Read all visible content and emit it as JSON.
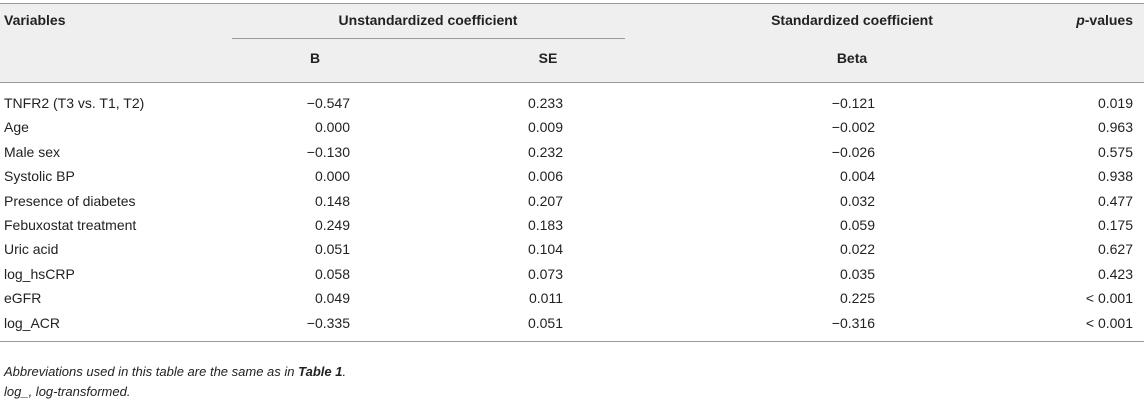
{
  "table": {
    "header": {
      "variables": "Variables",
      "unstandardized": "Unstandardized coefficient",
      "standardized": "Standardized coefficient",
      "p_values": {
        "italic": "p",
        "text": "-values"
      }
    },
    "subheader": {
      "b": "B",
      "se": "SE",
      "beta": "Beta"
    },
    "rows": [
      [
        "TNFR2 (T3 vs. T1, T2)",
        "−0.547",
        "0.233",
        "−0.121",
        "0.019"
      ],
      [
        "Age",
        "0.000",
        "0.009",
        "−0.002",
        "0.963"
      ],
      [
        "Male sex",
        "−0.130",
        "0.232",
        "−0.026",
        "0.575"
      ],
      [
        "Systolic BP",
        "0.000",
        "0.006",
        "0.004",
        "0.938"
      ],
      [
        "Presence of diabetes",
        "0.148",
        "0.207",
        "0.032",
        "0.477"
      ],
      [
        "Febuxostat treatment",
        "0.249",
        "0.183",
        "0.059",
        "0.175"
      ],
      [
        "Uric acid",
        "0.051",
        "0.104",
        "0.022",
        "0.627"
      ],
      [
        "log_hsCRP",
        "0.058",
        "0.073",
        "0.035",
        "0.423"
      ],
      [
        "eGFR",
        "0.049",
        "0.011",
        "0.225",
        "< 0.001"
      ],
      [
        "log_ACR",
        "−0.335",
        "0.051",
        "−0.316",
        "< 0.001"
      ]
    ],
    "notes": [
      [
        "Abbreviations used in this table are the same as in ",
        "Table 1",
        "."
      ],
      [
        "log_, log-transformed."
      ]
    ]
  }
}
